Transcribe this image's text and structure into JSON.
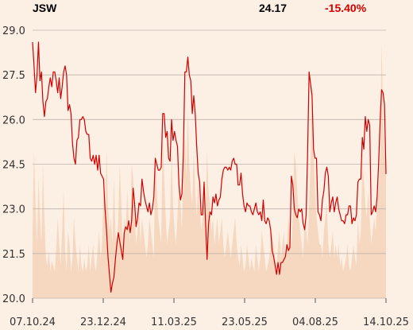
{
  "header": {
    "ticker": "JSW",
    "price": "24.17",
    "change": "-15.40%"
  },
  "colors": {
    "background": "#fcefe4",
    "line": "#d10000",
    "volume": "#f5d2b8",
    "grid": "#bfb6ae"
  },
  "chart_data": {
    "type": "line",
    "title": "",
    "xlabel": "",
    "ylabel": "",
    "ylim": [
      20.0,
      29.0
    ],
    "yticks": [
      "29.0",
      "27.5",
      "26.0",
      "24.5",
      "23.0",
      "21.5",
      "20.0"
    ],
    "xticks": [
      "07.10.24",
      "23.12.24",
      "11.03.25",
      "23.05.25",
      "04.08.25",
      "14.10.25"
    ],
    "grid": true,
    "series": [
      {
        "values": [
          28.6,
          27.8,
          26.9,
          27.5,
          28.6,
          27.3,
          27.6,
          26.6,
          26.1,
          26.6,
          26.7,
          27.1,
          27.4,
          27.1,
          27.6,
          27.6,
          27.3,
          26.9,
          27.4,
          26.7,
          27.1,
          27.6,
          27.8,
          27.5,
          26.3,
          26.5,
          26.2,
          25.2,
          24.7,
          24.5,
          25.3,
          25.4,
          26.0,
          26.0,
          26.1,
          26.0,
          25.6,
          25.5,
          25.5,
          24.7,
          24.6,
          24.8,
          24.5,
          24.8,
          24.3,
          24.8,
          24.2,
          24.1,
          24.0,
          23.0,
          22.3,
          21.4,
          20.8,
          20.2,
          20.5,
          20.7,
          21.3,
          21.8,
          22.2,
          21.9,
          21.6,
          21.3,
          22.2,
          22.4,
          22.3,
          22.6,
          22.2,
          22.6,
          23.7,
          23.2,
          22.4,
          22.7,
          23.2,
          23.1,
          24.0,
          23.6,
          23.3,
          23.1,
          22.9,
          23.2,
          22.8,
          23.0,
          23.4,
          24.7,
          24.5,
          24.3,
          24.3,
          24.4,
          26.2,
          26.2,
          25.4,
          25.6,
          24.7,
          24.6,
          26.0,
          25.3,
          25.6,
          25.3,
          25.1,
          23.8,
          23.3,
          23.5,
          24.9,
          27.6,
          27.6,
          28.1,
          27.5,
          27.3,
          26.2,
          26.8,
          26.2,
          25.1,
          24.2,
          23.9,
          22.8,
          22.8,
          23.9,
          22.5,
          21.3,
          22.5,
          22.9,
          22.8,
          23.4,
          23.2,
          23.5,
          23.1,
          23.3,
          23.4,
          24.0,
          24.3,
          24.4,
          24.4,
          24.3,
          24.4,
          24.3,
          24.6,
          24.7,
          24.5,
          24.5,
          23.8,
          23.8,
          24.2,
          23.5,
          23.1,
          22.9,
          23.2,
          23.1,
          23.1,
          22.9,
          22.8,
          23.0,
          23.2,
          22.9,
          22.8,
          22.9,
          22.6,
          23.3,
          22.6,
          22.5,
          22.7,
          22.6,
          22.3,
          21.6,
          21.4,
          21.1,
          20.8,
          21.2,
          20.8,
          21.2,
          21.2,
          21.3,
          21.4,
          21.8,
          21.6,
          21.7,
          24.1,
          23.8,
          23.0,
          22.8,
          22.7,
          23.0,
          22.9,
          23.0,
          22.5,
          22.3,
          22.8,
          24.9,
          27.6,
          27.2,
          26.8,
          25.0,
          24.7,
          24.7,
          22.9,
          22.8,
          22.6,
          23.3,
          23.6,
          24.2,
          24.4,
          24.1,
          22.9,
          23.2,
          23.4,
          22.9,
          23.2,
          23.4,
          23.0,
          22.8,
          22.6,
          22.6,
          22.5,
          22.8,
          22.8,
          23.1,
          23.1,
          22.5,
          22.7,
          22.6,
          22.8,
          23.9,
          24.0,
          24.0,
          25.4,
          25.0,
          26.1,
          25.6,
          26.0,
          25.8,
          22.8,
          22.9,
          23.1,
          22.9,
          23.4,
          24.5,
          25.9,
          27.0,
          26.9,
          26.5,
          24.17
        ]
      }
    ],
    "volume": [
      0.25,
      0.55,
      0.35,
      0.2,
      0.45,
      0.3,
      0.2,
      0.5,
      0.3,
      0.15,
      0.12,
      0.18,
      0.1,
      0.14,
      0.12,
      0.1,
      0.18,
      0.3,
      0.2,
      0.12,
      0.25,
      0.4,
      0.18,
      0.1,
      0.25,
      0.2,
      0.1,
      0.15,
      0.3,
      0.2,
      0.15,
      0.1,
      0.2,
      0.12,
      0.1,
      0.15,
      0.1,
      0.12,
      0.2,
      0.1,
      0.15,
      0.2,
      0.12,
      0.1,
      0.18,
      0.25,
      0.15,
      0.2,
      0.4,
      0.3,
      0.55,
      0.35,
      0.25,
      0.3,
      0.2,
      0.45,
      0.25,
      0.2,
      0.3,
      0.5,
      0.35,
      0.2,
      0.3,
      0.25,
      0.4,
      0.3,
      0.2,
      0.5,
      0.45,
      0.3,
      0.2,
      0.25,
      0.35,
      0.2,
      0.3,
      0.25,
      0.2,
      0.15,
      0.2,
      0.3,
      0.25,
      0.2,
      0.15,
      0.55,
      0.4,
      0.3,
      0.25,
      0.2,
      0.6,
      0.45,
      0.3,
      0.2,
      0.25,
      0.3,
      0.55,
      0.35,
      0.25,
      0.2,
      0.3,
      0.45,
      0.35,
      0.25,
      0.5,
      0.6,
      0.45,
      0.7,
      0.5,
      0.4,
      0.35,
      0.55,
      0.4,
      0.3,
      0.45,
      0.35,
      0.25,
      0.3,
      0.4,
      0.3,
      0.55,
      0.4,
      0.35,
      0.25,
      0.3,
      0.2,
      0.25,
      0.3,
      0.2,
      0.25,
      0.3,
      0.2,
      0.15,
      0.2,
      0.25,
      0.2,
      0.15,
      0.2,
      0.25,
      0.3,
      0.2,
      0.15,
      0.12,
      0.2,
      0.15,
      0.1,
      0.12,
      0.2,
      0.15,
      0.1,
      0.15,
      0.12,
      0.1,
      0.2,
      0.15,
      0.1,
      0.15,
      0.25,
      0.2,
      0.15,
      0.1,
      0.12,
      0.15,
      0.2,
      0.25,
      0.2,
      0.15,
      0.12,
      0.2,
      0.25,
      0.15,
      0.2,
      0.25,
      0.15,
      0.2,
      0.3,
      0.25,
      0.2,
      0.3,
      0.55,
      0.5,
      0.4,
      0.3,
      0.25,
      0.2,
      0.15,
      0.3,
      0.25,
      0.2,
      0.35,
      0.5,
      0.8,
      0.55,
      0.4,
      0.3,
      0.25,
      0.2,
      0.2,
      0.15,
      0.25,
      0.3,
      0.35,
      0.2,
      0.15,
      0.2,
      0.25,
      0.15,
      0.2,
      0.15,
      0.2,
      0.12,
      0.15,
      0.1,
      0.12,
      0.15,
      0.2,
      0.12,
      0.1,
      0.15,
      0.2,
      0.15,
      0.12,
      0.3,
      0.2,
      0.25,
      0.5,
      0.45,
      0.35,
      0.3,
      0.4,
      0.3,
      0.2,
      0.25,
      0.3,
      0.25,
      0.35,
      0.4,
      0.5,
      0.95,
      0.7,
      0.5,
      0.6
    ]
  }
}
